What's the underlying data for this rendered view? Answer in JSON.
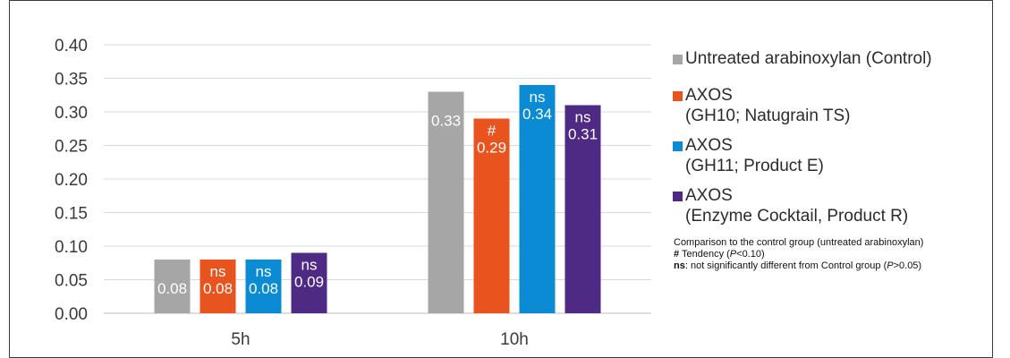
{
  "chart_data": {
    "type": "bar",
    "categories": [
      "5h",
      "10h"
    ],
    "series": [
      {
        "name": "Untreated arabinoxylan (Control)",
        "color": "#a6a6a6",
        "values": [
          0.08,
          0.33
        ],
        "labels": [
          "0.08",
          "0.33"
        ],
        "marks": [
          "",
          ""
        ]
      },
      {
        "name": "AXOS\n(GH10; Natugrain TS)",
        "color": "#e8531e",
        "values": [
          0.08,
          0.29
        ],
        "labels": [
          "0.08",
          "0.29"
        ],
        "marks": [
          "ns",
          "#"
        ]
      },
      {
        "name": "AXOS\n(GH11; Product E)",
        "color": "#0a8bd3",
        "values": [
          0.08,
          0.34
        ],
        "labels": [
          "0.08",
          "0.34"
        ],
        "marks": [
          "ns",
          "ns"
        ]
      },
      {
        "name": "AXOS\n(Enzyme Cocktail, Product R)",
        "color": "#4e2a84",
        "values": [
          0.09,
          0.31
        ],
        "labels": [
          "0.09",
          "0.31"
        ],
        "marks": [
          "ns",
          "ns"
        ]
      }
    ],
    "yticks": [
      "0.00",
      "0.05",
      "0.10",
      "0.15",
      "0.20",
      "0.25",
      "0.30",
      "0.35",
      "0.40"
    ],
    "ylim": [
      0,
      0.4
    ],
    "grid": true,
    "legend_position": "right"
  },
  "notes": {
    "line1": "Comparison to the control group (untreated arabinoxylan)",
    "line2_symbol": "#",
    "line2_text": " Tendency (",
    "line2_p": "P",
    "line2_end": "<0.10)",
    "line3_symbol": "ns",
    "line3_text": ": not significantly different from Control group (",
    "line3_p": "P",
    "line3_end": ">0.05)"
  }
}
